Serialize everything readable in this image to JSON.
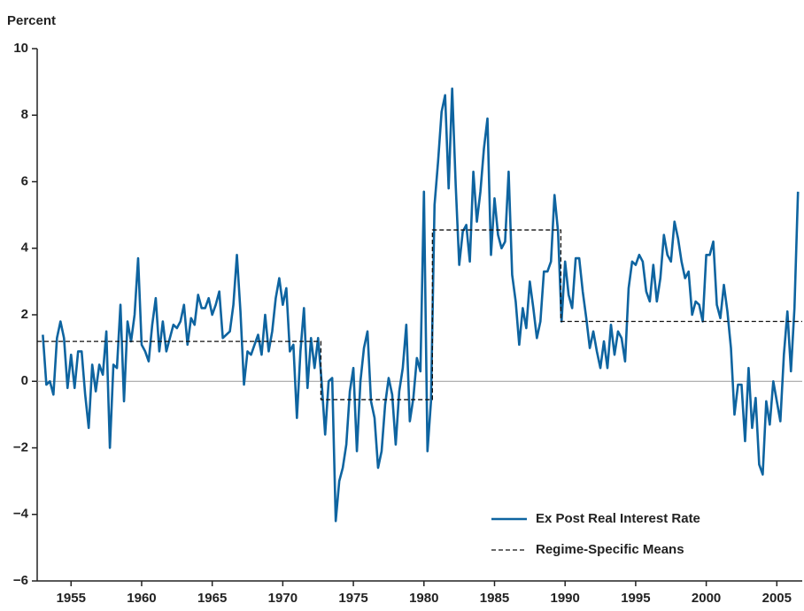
{
  "chart_data": {
    "type": "line",
    "y_label": "Percent",
    "xlim": [
      1952.6,
      2006.8
    ],
    "ylim": [
      -6,
      10
    ],
    "xticks": [
      1955,
      1960,
      1965,
      1970,
      1975,
      1980,
      1985,
      1990,
      1995,
      2000,
      2005
    ],
    "yticks": [
      {
        "value": -6,
        "label": "−6"
      },
      {
        "value": -4,
        "label": "−4"
      },
      {
        "value": -2,
        "label": "−2"
      },
      0,
      2,
      4,
      6,
      8,
      10
    ],
    "zero_line": true,
    "legend": "lower right",
    "series": [
      {
        "name": "Ex Post Real Interest Rate",
        "color": "#0e64a0",
        "style": "solid",
        "x": [
          1953,
          1953.25,
          1953.5,
          1953.75,
          1954,
          1954.25,
          1954.5,
          1954.75,
          1955,
          1955.25,
          1955.5,
          1955.75,
          1956,
          1956.25,
          1956.5,
          1956.75,
          1957,
          1957.25,
          1957.5,
          1957.75,
          1958,
          1958.25,
          1958.5,
          1958.75,
          1959,
          1959.25,
          1959.5,
          1959.75,
          1960,
          1960.25,
          1960.5,
          1960.75,
          1961,
          1961.25,
          1961.5,
          1961.75,
          1962,
          1962.25,
          1962.5,
          1962.75,
          1963,
          1963.25,
          1963.5,
          1963.75,
          1964,
          1964.25,
          1964.5,
          1964.75,
          1965,
          1965.25,
          1965.5,
          1965.75,
          1966,
          1966.25,
          1966.5,
          1966.75,
          1967,
          1967.25,
          1967.5,
          1967.75,
          1968,
          1968.25,
          1968.5,
          1968.75,
          1969,
          1969.25,
          1969.5,
          1969.75,
          1970,
          1970.25,
          1970.5,
          1970.75,
          1971,
          1971.25,
          1971.5,
          1971.75,
          1972,
          1972.25,
          1972.5,
          1972.75,
          1973,
          1973.25,
          1973.5,
          1973.75,
          1974,
          1974.25,
          1974.5,
          1974.75,
          1975,
          1975.25,
          1975.5,
          1975.75,
          1976,
          1976.25,
          1976.5,
          1976.75,
          1977,
          1977.25,
          1977.5,
          1977.75,
          1978,
          1978.25,
          1978.5,
          1978.75,
          1979,
          1979.25,
          1979.5,
          1979.75,
          1980,
          1980.25,
          1980.5,
          1980.75,
          1981,
          1981.25,
          1981.5,
          1981.75,
          1982,
          1982.25,
          1982.5,
          1982.75,
          1983,
          1983.25,
          1983.5,
          1983.75,
          1984,
          1984.25,
          1984.5,
          1984.75,
          1985,
          1985.25,
          1985.5,
          1985.75,
          1986,
          1986.25,
          1986.5,
          1986.75,
          1987,
          1987.25,
          1987.5,
          1987.75,
          1988,
          1988.25,
          1988.5,
          1988.75,
          1989,
          1989.25,
          1989.5,
          1989.75,
          1990,
          1990.25,
          1990.5,
          1990.75,
          1991,
          1991.25,
          1991.5,
          1991.75,
          1992,
          1992.25,
          1992.5,
          1992.75,
          1993,
          1993.25,
          1993.5,
          1993.75,
          1994,
          1994.25,
          1994.5,
          1994.75,
          1995,
          1995.25,
          1995.5,
          1995.75,
          1996,
          1996.25,
          1996.5,
          1996.75,
          1997,
          1997.25,
          1997.5,
          1997.75,
          1998,
          1998.25,
          1998.5,
          1998.75,
          1999,
          1999.25,
          1999.5,
          1999.75,
          2000,
          2000.25,
          2000.5,
          2000.75,
          2001,
          2001.25,
          2001.5,
          2001.75,
          2002,
          2002.25,
          2002.5,
          2002.75,
          2003,
          2003.25,
          2003.5,
          2003.75,
          2004,
          2004.25,
          2004.5,
          2004.75,
          2005,
          2005.25,
          2005.5,
          2005.75,
          2006,
          2006.25,
          2006.5
        ],
        "values": [
          1.4,
          -0.1,
          0.0,
          -0.4,
          1.3,
          1.8,
          1.3,
          -0.2,
          0.8,
          -0.2,
          0.9,
          0.9,
          -0.4,
          -1.4,
          0.5,
          -0.3,
          0.5,
          0.2,
          1.5,
          -2.0,
          0.5,
          0.4,
          2.3,
          -0.6,
          1.8,
          1.2,
          2.0,
          3.7,
          1.1,
          0.9,
          0.6,
          1.7,
          2.5,
          0.9,
          1.8,
          0.9,
          1.3,
          1.7,
          1.6,
          1.8,
          2.3,
          1.1,
          1.9,
          1.7,
          2.6,
          2.2,
          2.2,
          2.5,
          2.0,
          2.3,
          2.7,
          1.3,
          1.4,
          1.5,
          2.3,
          3.8,
          2.1,
          -0.1,
          0.9,
          0.8,
          1.1,
          1.4,
          0.8,
          2.0,
          0.9,
          1.5,
          2.5,
          3.1,
          2.3,
          2.8,
          0.9,
          1.1,
          -1.1,
          0.9,
          2.2,
          -0.2,
          1.3,
          0.4,
          1.3,
          0.0,
          -1.6,
          0.0,
          0.1,
          -4.2,
          -3.0,
          -2.6,
          -1.9,
          -0.3,
          0.4,
          -2.1,
          0.0,
          1.0,
          1.5,
          -0.6,
          -1.1,
          -2.6,
          -2.1,
          -0.7,
          0.1,
          -0.4,
          -1.9,
          -0.3,
          0.4,
          1.7,
          -1.2,
          -0.5,
          0.7,
          0.3,
          5.7,
          -2.1,
          -0.6,
          5.3,
          6.6,
          8.1,
          8.6,
          5.8,
          8.8,
          5.9,
          3.5,
          4.5,
          4.7,
          3.6,
          6.3,
          4.8,
          5.7,
          7.0,
          7.9,
          3.8,
          5.5,
          4.4,
          4.0,
          4.2,
          6.3,
          3.2,
          2.4,
          1.1,
          2.2,
          1.6,
          3.0,
          2.2,
          1.3,
          1.8,
          3.3,
          3.3,
          3.6,
          5.6,
          4.5,
          1.8,
          3.6,
          2.6,
          2.2,
          3.7,
          3.7,
          2.7,
          1.9,
          1.0,
          1.5,
          0.9,
          0.4,
          1.2,
          0.4,
          1.7,
          0.8,
          1.5,
          1.3,
          0.6,
          2.8,
          3.6,
          3.5,
          3.8,
          3.6,
          2.7,
          2.4,
          3.5,
          2.4,
          3.1,
          4.4,
          3.8,
          3.6,
          4.8,
          4.3,
          3.6,
          3.1,
          3.3,
          2.0,
          2.4,
          2.3,
          1.8,
          3.8,
          3.8,
          4.2,
          2.3,
          1.9,
          2.9,
          2.1,
          1.0,
          -1.0,
          -0.1,
          -0.1,
          -1.8,
          0.4,
          -1.4,
          -0.5,
          -2.5,
          -2.8,
          -0.6,
          -1.3,
          0.0,
          -0.6,
          -1.2,
          0.8,
          2.1,
          0.3,
          2.2,
          5.7
        ]
      },
      {
        "name": "Regime-Specific Means",
        "color": "#111111",
        "style": "dashed",
        "x": [
          1952.6,
          1972.7,
          1972.7,
          1980.6,
          1980.6,
          1989.7,
          1989.7,
          2006.8
        ],
        "values": [
          1.2,
          1.2,
          -0.55,
          -0.55,
          4.55,
          4.55,
          1.8,
          1.8
        ]
      }
    ]
  }
}
